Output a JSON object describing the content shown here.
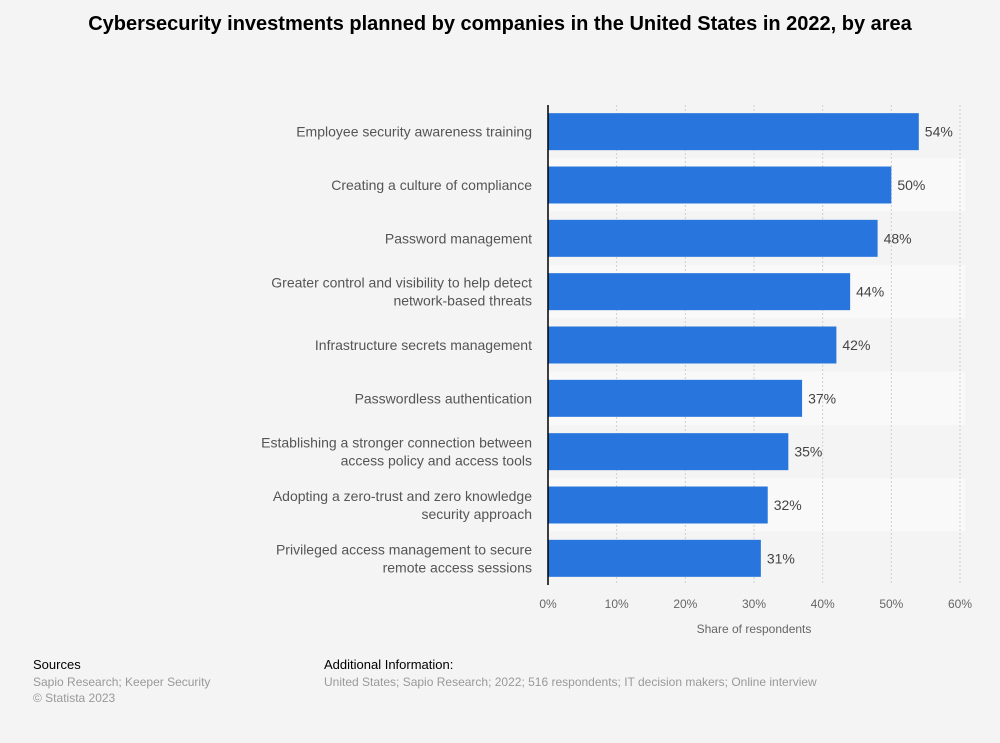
{
  "chart_data": {
    "type": "bar",
    "orientation": "horizontal",
    "title": "Cybersecurity investments planned by companies in the United States in 2022, by area",
    "categories": [
      [
        "Employee security awareness training"
      ],
      [
        "Creating a culture of compliance"
      ],
      [
        "Password management"
      ],
      [
        "Greater control and visibility to help detect",
        "network-based threats"
      ],
      [
        "Infrastructure secrets management"
      ],
      [
        "Passwordless authentication"
      ],
      [
        "Establishing a stronger connection between",
        "access policy and access tools"
      ],
      [
        "Adopting a zero-trust and zero knowledge",
        "security approach"
      ],
      [
        "Privileged access management to secure",
        "remote access sessions"
      ]
    ],
    "values": [
      54,
      50,
      48,
      44,
      42,
      37,
      35,
      32,
      31
    ],
    "data_labels": [
      "54%",
      "50%",
      "48%",
      "44%",
      "42%",
      "37%",
      "35%",
      "32%",
      "31%"
    ],
    "xlabel": "Share of respondents",
    "xlim": [
      0,
      60
    ],
    "xticks": [
      "0%",
      "10%",
      "20%",
      "30%",
      "40%",
      "50%",
      "60%"
    ],
    "grid": true,
    "bar_color": "#2876dd"
  },
  "footer": {
    "sources_heading": "Sources",
    "sources_text": "Sapio Research; Keeper Security",
    "copyright": "© Statista 2023",
    "additional_heading": "Additional Information:",
    "additional_text": "United States; Sapio Research; 2022; 516 respondents; IT decision makers; Online interview"
  }
}
